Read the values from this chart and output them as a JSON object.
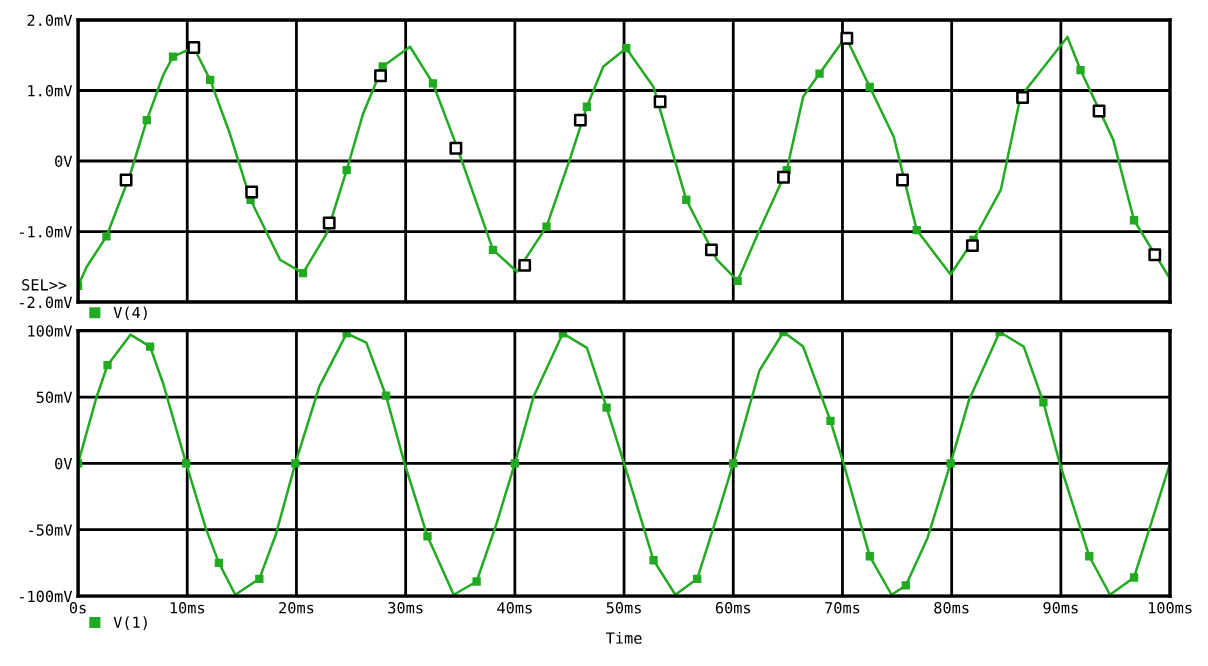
{
  "chart_data": [
    {
      "type": "line",
      "annotations": [
        "SEL>>"
      ],
      "xlim": [
        0,
        100
      ],
      "ylim": [
        -2,
        2
      ],
      "xticks": [
        0,
        10,
        20,
        30,
        40,
        50,
        60,
        70,
        80,
        90,
        100
      ],
      "yticks": [
        {
          "value": -2,
          "label": "-2.0mV"
        },
        {
          "value": -1,
          "label": "-1.0mV"
        },
        {
          "value": 0,
          "label": "0V"
        },
        {
          "value": 1,
          "label": "1.0mV"
        },
        {
          "value": 2,
          "label": "2.0mV"
        }
      ],
      "tick_labels": "y",
      "grid": true,
      "legend": "bottom left",
      "marker": "square",
      "line_style": "solid",
      "series": [
        {
          "name": "V(4)",
          "color": "#22aa22",
          "x": [
            0,
            0.8,
            2.6,
            4.8,
            6.3,
            7.8,
            8.7,
            10.6,
            12.1,
            13.9,
            15.8,
            18.5,
            20.6,
            22.8,
            24.6,
            26.1,
            27.9,
            30.4,
            32.5,
            34.7,
            38.0,
            40.2,
            42.9,
            45.0,
            46.6,
            48.1,
            50.2,
            52.7,
            55.7,
            58.5,
            60.4,
            62.4,
            64.9,
            66.4,
            67.9,
            70.3,
            72.5,
            74.7,
            76.8,
            79.9,
            82.0,
            84.5,
            86.3,
            90.6,
            91.8,
            94.8,
            96.7,
            100
          ],
          "values": [
            -1.77,
            -1.5,
            -1.07,
            -0.18,
            0.58,
            1.22,
            1.48,
            1.61,
            1.15,
            0.39,
            -0.55,
            -1.4,
            -1.59,
            -1.02,
            -0.13,
            0.67,
            1.34,
            1.62,
            1.1,
            0.2,
            -1.26,
            -1.57,
            -0.93,
            0.01,
            0.77,
            1.34,
            1.6,
            1.05,
            -0.55,
            -1.4,
            -1.7,
            -0.98,
            -0.13,
            0.91,
            1.24,
            1.76,
            1.05,
            0.34,
            -0.98,
            -1.61,
            -1.12,
            -0.41,
            0.91,
            1.76,
            1.29,
            0.3,
            -0.84,
            -1.67
          ]
        },
        {
          "type": "scatter",
          "color": "#000000",
          "marker": "square",
          "x": [
            4.4,
            10.6,
            15.9,
            23.0,
            27.7,
            34.6,
            40.9,
            46.0,
            53.3,
            58.0,
            64.6,
            70.4,
            75.5,
            81.9,
            86.5,
            93.5,
            98.6
          ],
          "values": [
            -0.27,
            1.61,
            -0.44,
            -0.88,
            1.21,
            0.18,
            -1.48,
            0.58,
            0.84,
            -1.26,
            -0.23,
            1.74,
            -0.27,
            -1.2,
            0.9,
            0.71,
            -1.33
          ]
        }
      ]
    },
    {
      "type": "line",
      "xlabel": "Time",
      "xlim": [
        0,
        100
      ],
      "ylim": [
        -100,
        100
      ],
      "xticks": [
        {
          "value": 0,
          "label": "0s"
        },
        {
          "value": 10,
          "label": "10ms"
        },
        {
          "value": 20,
          "label": "20ms"
        },
        {
          "value": 30,
          "label": "30ms"
        },
        {
          "value": 40,
          "label": "40ms"
        },
        {
          "value": 50,
          "label": "50ms"
        },
        {
          "value": 60,
          "label": "60ms"
        },
        {
          "value": 70,
          "label": "70ms"
        },
        {
          "value": 80,
          "label": "80ms"
        },
        {
          "value": 90,
          "label": "90ms"
        },
        {
          "value": 100,
          "label": "100ms"
        }
      ],
      "yticks": [
        {
          "value": -100,
          "label": "-100mV"
        },
        {
          "value": -50,
          "label": "-50mV"
        },
        {
          "value": 0,
          "label": "0V"
        },
        {
          "value": 50,
          "label": "50mV"
        },
        {
          "value": 100,
          "label": "100mV"
        }
      ],
      "grid": true,
      "legend": "bottom left",
      "marker": "square",
      "line_style": "solid",
      "series": [
        {
          "name": "V(1)",
          "color": "#22aa22",
          "x": [
            0,
            1.7,
            2.7,
            4.8,
            6.6,
            7.8,
            9.9,
            11.7,
            12.9,
            14.4,
            16.6,
            18.1,
            19.9,
            22.1,
            24.6,
            26.4,
            28.2,
            29.9,
            32.0,
            34.4,
            36.5,
            38.3,
            40.0,
            41.7,
            44.4,
            46.6,
            48.4,
            50.0,
            52.7,
            54.7,
            56.7,
            58.7,
            60.0,
            62.4,
            64.6,
            66.4,
            68.9,
            70.1,
            72.5,
            74.5,
            75.8,
            77.8,
            79.9,
            81.6,
            84.4,
            86.6,
            88.4,
            89.9,
            92.6,
            94.5,
            96.7,
            100
          ],
          "values": [
            0,
            50,
            74,
            97,
            88,
            60,
            0,
            -49,
            -75,
            -99,
            -87,
            -54,
            0,
            58,
            98,
            91,
            51,
            0,
            -55,
            -99,
            -89,
            -46,
            0,
            50,
            98,
            87,
            42,
            0,
            -73,
            -99,
            -87,
            -35,
            0,
            70,
            99,
            88,
            32,
            0,
            -70,
            -99,
            -92,
            -56,
            0,
            48,
            99,
            88,
            46,
            0,
            -70,
            -99,
            -86,
            0
          ]
        }
      ]
    }
  ]
}
